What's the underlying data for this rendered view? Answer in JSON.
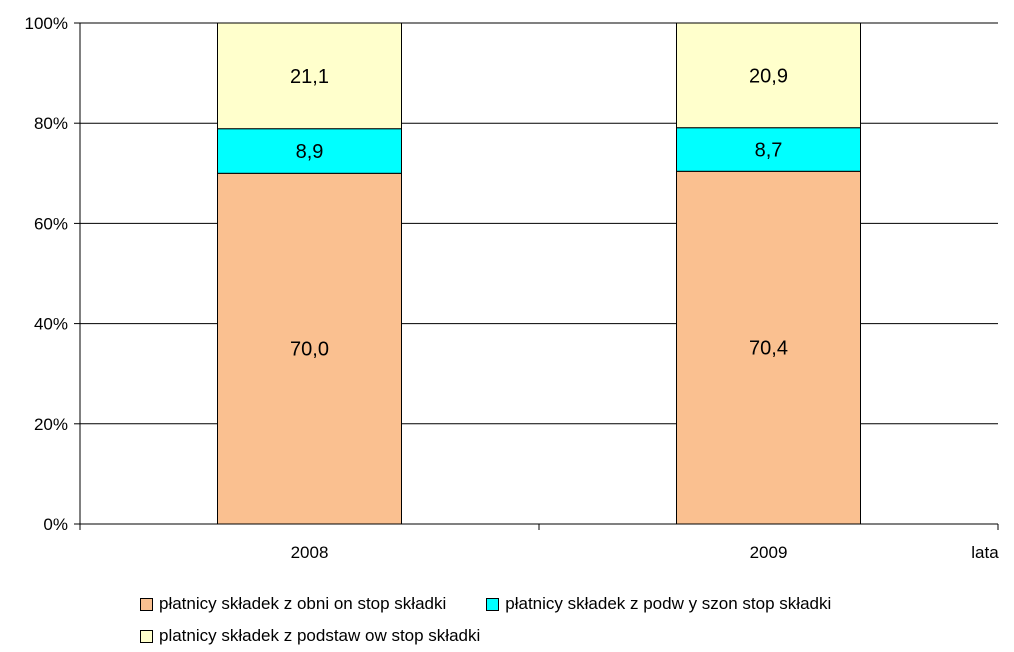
{
  "chart_data": {
    "type": "bar",
    "stacked": true,
    "percent_stacked": true,
    "categories": [
      "2008",
      "2009"
    ],
    "series": [
      {
        "name": "płatnicy składek z obni on stop składki",
        "values": [
          70.0,
          70.4
        ],
        "labels": [
          "70,0",
          "70,4"
        ],
        "color": "#FAC090"
      },
      {
        "name": "płatnicy składek z podw y szon stop składki",
        "values": [
          8.9,
          8.7
        ],
        "labels": [
          "8,9",
          "8,7"
        ],
        "color": "#00FFFF"
      },
      {
        "name": "platnicy składek z podstaw ow stop składki",
        "values": [
          21.1,
          20.9
        ],
        "labels": [
          "21,1",
          "20,9"
        ],
        "color": "#FFFFCC"
      }
    ],
    "xlabel": "lata",
    "ylabel": "",
    "ylim": [
      0,
      100
    ],
    "yticks": [
      "0%",
      "20%",
      "40%",
      "60%",
      "80%",
      "100%"
    ],
    "grid": true,
    "legend_position": "bottom"
  }
}
